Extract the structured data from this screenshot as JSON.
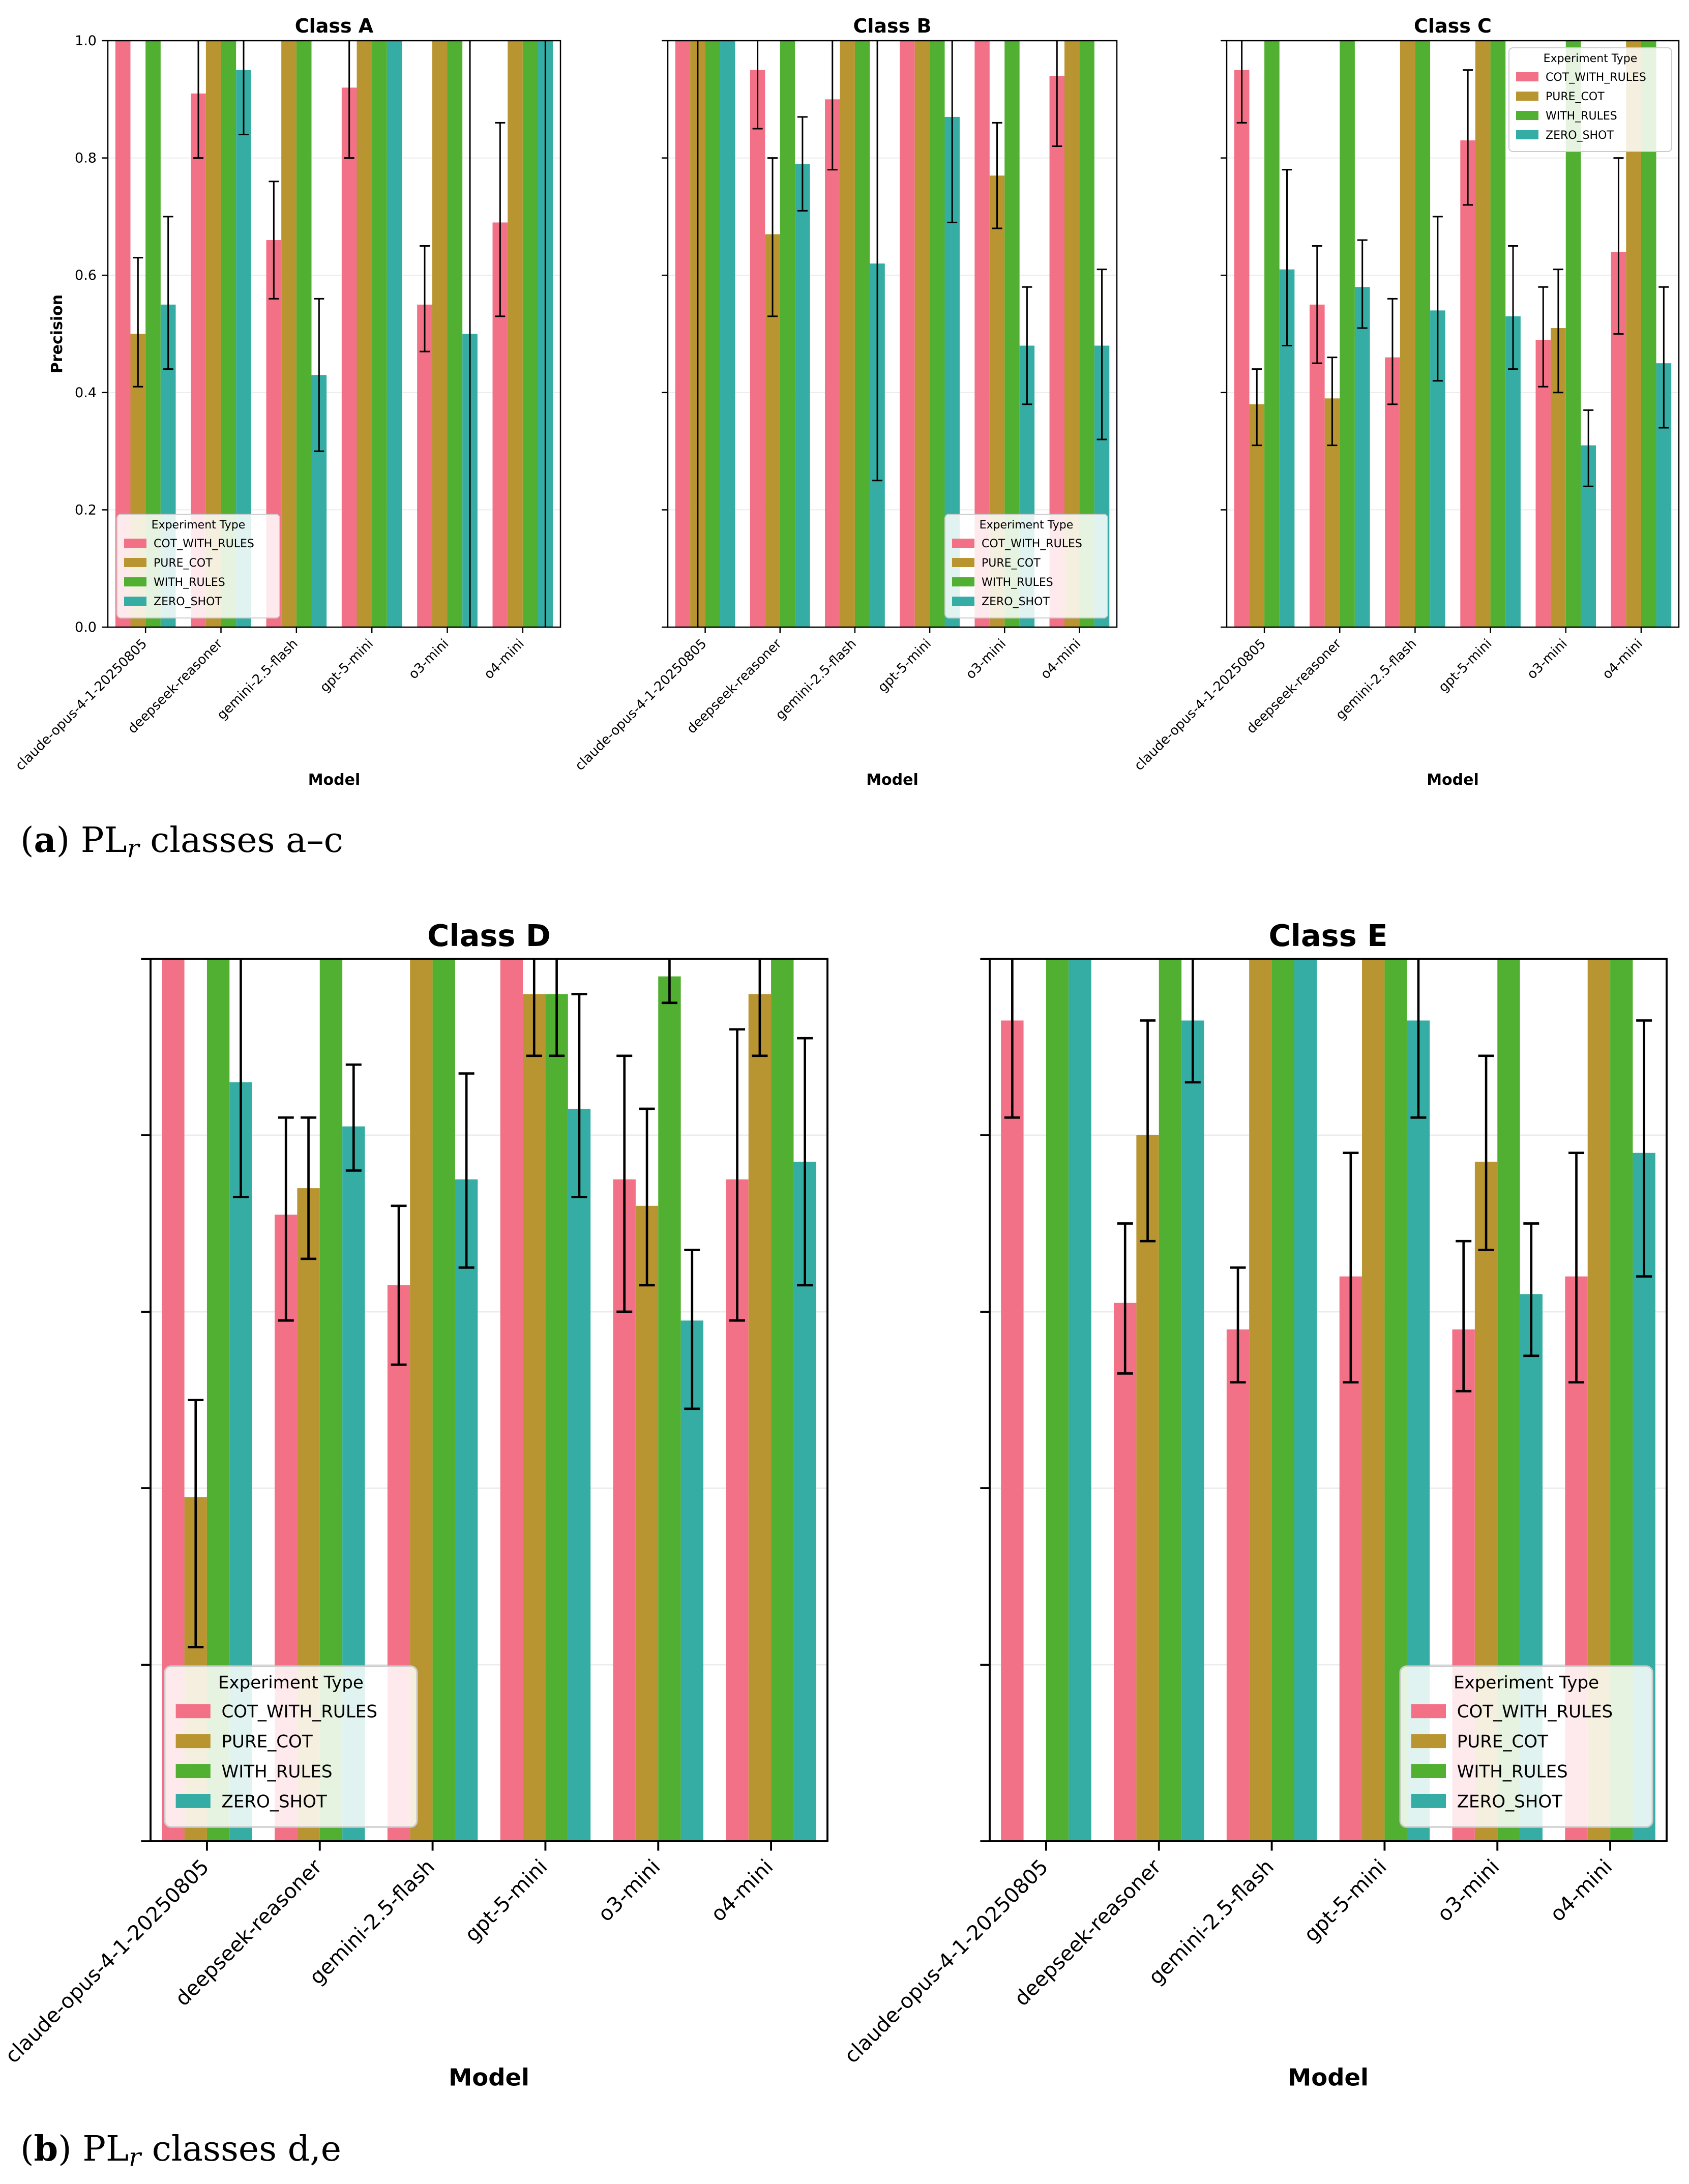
{
  "legend_title": "Experiment Type",
  "experiments": [
    "COT_WITH_RULES",
    "PURE_COT",
    "WITH_RULES",
    "ZERO_SHOT"
  ],
  "colors": {
    "COT_WITH_RULES": "#f37187",
    "PURE_COT": "#b99531",
    "WITH_RULES": "#51b031",
    "ZERO_SHOT": "#36ada4"
  },
  "captions": [
    {
      "label": "a",
      "prefix": "PL",
      "sub": "r",
      "text": "classes a–c"
    },
    {
      "label": "b",
      "prefix": "PL",
      "sub": "r",
      "text": "classes d,e"
    }
  ],
  "chart_data": [
    {
      "type": "bar",
      "title": "Class A",
      "xlabel": "Model",
      "ylabel": "Precision",
      "ylim": [
        0,
        1.0
      ],
      "yticks": [
        "0.0",
        "0.2",
        "0.4",
        "0.6",
        "0.8",
        "1.0"
      ],
      "grid": true,
      "legend_position": "lower-left",
      "categories": [
        "claude-opus-4-1-20250805",
        "deepseek-reasoner",
        "gemini-2.5-flash",
        "gpt-5-mini",
        "o3-mini",
        "o4-mini"
      ],
      "series": [
        {
          "name": "COT_WITH_RULES",
          "values": [
            1.0,
            0.91,
            0.66,
            0.92,
            0.55,
            0.69
          ],
          "err_low": [
            null,
            0.8,
            0.56,
            0.8,
            0.47,
            0.53
          ],
          "err_high": [
            null,
            1.0,
            0.76,
            1.0,
            0.65,
            0.86
          ]
        },
        {
          "name": "PURE_COT",
          "values": [
            0.5,
            1.0,
            1.0,
            1.0,
            1.0,
            1.0
          ],
          "err_low": [
            0.41,
            null,
            null,
            null,
            null,
            null
          ],
          "err_high": [
            0.63,
            null,
            null,
            null,
            null,
            null
          ]
        },
        {
          "name": "WITH_RULES",
          "values": [
            1.0,
            1.0,
            1.0,
            1.0,
            1.0,
            1.0
          ],
          "err_low": [
            null,
            null,
            null,
            null,
            null,
            null
          ],
          "err_high": [
            null,
            null,
            null,
            null,
            null,
            null
          ]
        },
        {
          "name": "ZERO_SHOT",
          "values": [
            0.55,
            0.95,
            0.43,
            1.0,
            0.5,
            1.0
          ],
          "err_low": [
            0.44,
            0.84,
            0.3,
            null,
            0.0,
            0.0
          ],
          "err_high": [
            0.7,
            1.0,
            0.56,
            null,
            1.0,
            1.0
          ]
        }
      ]
    },
    {
      "type": "bar",
      "title": "Class B",
      "xlabel": "Model",
      "ylabel": "",
      "ylim": [
        0,
        1.0
      ],
      "yticks": [],
      "grid": true,
      "legend_position": "lower-right",
      "categories": [
        "claude-opus-4-1-20250805",
        "deepseek-reasoner",
        "gemini-2.5-flash",
        "gpt-5-mini",
        "o3-mini",
        "o4-mini"
      ],
      "series": [
        {
          "name": "COT_WITH_RULES",
          "values": [
            1.0,
            0.95,
            0.9,
            1.0,
            1.0,
            0.94
          ],
          "err_low": [
            null,
            0.85,
            0.78,
            null,
            null,
            0.82
          ],
          "err_high": [
            null,
            1.0,
            1.0,
            null,
            null,
            1.0
          ]
        },
        {
          "name": "PURE_COT",
          "values": [
            1.0,
            0.67,
            1.0,
            1.0,
            0.77,
            1.0
          ],
          "err_low": [
            0.0,
            0.53,
            null,
            null,
            0.68,
            null
          ],
          "err_high": [
            1.0,
            0.8,
            null,
            null,
            0.86,
            null
          ]
        },
        {
          "name": "WITH_RULES",
          "values": [
            1.0,
            1.0,
            1.0,
            1.0,
            1.0,
            1.0
          ],
          "err_low": [
            null,
            null,
            null,
            null,
            null,
            null
          ],
          "err_high": [
            null,
            null,
            null,
            null,
            null,
            null
          ]
        },
        {
          "name": "ZERO_SHOT",
          "values": [
            1.0,
            0.79,
            0.62,
            0.87,
            0.48,
            0.48
          ],
          "err_low": [
            null,
            0.71,
            0.25,
            0.69,
            0.38,
            0.32
          ],
          "err_high": [
            null,
            0.87,
            1.0,
            1.0,
            0.58,
            0.61
          ]
        }
      ]
    },
    {
      "type": "bar",
      "title": "Class C",
      "xlabel": "Model",
      "ylabel": "",
      "ylim": [
        0,
        1.0
      ],
      "yticks": [],
      "grid": true,
      "legend_position": "top-right",
      "categories": [
        "claude-opus-4-1-20250805",
        "deepseek-reasoner",
        "gemini-2.5-flash",
        "gpt-5-mini",
        "o3-mini",
        "o4-mini"
      ],
      "series": [
        {
          "name": "COT_WITH_RULES",
          "values": [
            0.95,
            0.55,
            0.46,
            0.83,
            0.49,
            0.64
          ],
          "err_low": [
            0.86,
            0.45,
            0.38,
            0.72,
            0.41,
            0.5
          ],
          "err_high": [
            1.0,
            0.65,
            0.56,
            0.95,
            0.58,
            0.8
          ]
        },
        {
          "name": "PURE_COT",
          "values": [
            0.38,
            0.39,
            1.0,
            1.0,
            0.51,
            1.0
          ],
          "err_low": [
            0.31,
            0.31,
            null,
            null,
            0.4,
            null
          ],
          "err_high": [
            0.44,
            0.46,
            null,
            null,
            0.61,
            null
          ]
        },
        {
          "name": "WITH_RULES",
          "values": [
            1.0,
            1.0,
            1.0,
            1.0,
            1.0,
            1.0
          ],
          "err_low": [
            null,
            null,
            null,
            null,
            null,
            null
          ],
          "err_high": [
            null,
            null,
            null,
            null,
            null,
            null
          ]
        },
        {
          "name": "ZERO_SHOT",
          "values": [
            0.61,
            0.58,
            0.54,
            0.53,
            0.31,
            0.45
          ],
          "err_low": [
            0.48,
            0.51,
            0.42,
            0.44,
            0.24,
            0.34
          ],
          "err_high": [
            0.78,
            0.66,
            0.7,
            0.65,
            0.37,
            0.58
          ]
        }
      ]
    },
    {
      "type": "bar",
      "title": "Class D",
      "xlabel": "Model",
      "ylabel": "",
      "ylim": [
        0,
        1.0
      ],
      "yticks": [],
      "grid": true,
      "legend_position": "lower-left",
      "categories": [
        "claude-opus-4-1-20250805",
        "deepseek-reasoner",
        "gemini-2.5-flash",
        "gpt-5-mini",
        "o3-mini",
        "o4-mini"
      ],
      "series": [
        {
          "name": "COT_WITH_RULES",
          "values": [
            1.0,
            0.71,
            0.63,
            1.0,
            0.75,
            0.75
          ],
          "err_low": [
            null,
            0.59,
            0.54,
            null,
            0.6,
            0.59
          ],
          "err_high": [
            null,
            0.82,
            0.72,
            null,
            0.89,
            0.92
          ]
        },
        {
          "name": "PURE_COT",
          "values": [
            0.39,
            0.74,
            1.0,
            0.96,
            0.72,
            0.96
          ],
          "err_low": [
            0.22,
            0.66,
            null,
            0.89,
            0.63,
            0.89
          ],
          "err_high": [
            0.5,
            0.82,
            null,
            1.0,
            0.83,
            1.0
          ]
        },
        {
          "name": "WITH_RULES",
          "values": [
            1.0,
            1.0,
            1.0,
            0.96,
            0.98,
            1.0
          ],
          "err_low": [
            null,
            null,
            null,
            0.89,
            0.95,
            null
          ],
          "err_high": [
            null,
            null,
            null,
            1.0,
            1.0,
            null
          ]
        },
        {
          "name": "ZERO_SHOT",
          "values": [
            0.86,
            0.81,
            0.75,
            0.83,
            0.59,
            0.77
          ],
          "err_low": [
            0.73,
            0.76,
            0.65,
            0.73,
            0.49,
            0.63
          ],
          "err_high": [
            1.0,
            0.88,
            0.87,
            0.96,
            0.67,
            0.91
          ]
        }
      ]
    },
    {
      "type": "bar",
      "title": "Class E",
      "xlabel": "Model",
      "ylabel": "",
      "ylim": [
        0,
        1.0
      ],
      "yticks": [],
      "grid": true,
      "legend_position": "lower-right",
      "categories": [
        "claude-opus-4-1-20250805",
        "deepseek-reasoner",
        "gemini-2.5-flash",
        "gpt-5-mini",
        "o3-mini",
        "o4-mini"
      ],
      "series": [
        {
          "name": "COT_WITH_RULES",
          "values": [
            0.93,
            0.61,
            0.58,
            0.64,
            0.58,
            0.64
          ],
          "err_low": [
            0.82,
            0.53,
            0.52,
            0.52,
            0.51,
            0.52
          ],
          "err_high": [
            1.0,
            0.7,
            0.65,
            0.78,
            0.68,
            0.78
          ]
        },
        {
          "name": "PURE_COT",
          "values": [
            0.0,
            0.8,
            1.0,
            1.0,
            0.77,
            1.0
          ],
          "err_low": [
            null,
            0.68,
            null,
            null,
            0.67,
            null
          ],
          "err_high": [
            null,
            0.93,
            null,
            null,
            0.89,
            null
          ]
        },
        {
          "name": "WITH_RULES",
          "values": [
            1.0,
            1.0,
            1.0,
            1.0,
            1.0,
            1.0
          ],
          "err_low": [
            null,
            null,
            null,
            null,
            null,
            null
          ],
          "err_high": [
            null,
            null,
            null,
            null,
            null,
            null
          ]
        },
        {
          "name": "ZERO_SHOT",
          "values": [
            1.0,
            0.93,
            1.0,
            0.93,
            0.62,
            0.78
          ],
          "err_low": [
            null,
            0.86,
            null,
            0.82,
            0.55,
            0.64
          ],
          "err_high": [
            null,
            1.0,
            null,
            1.0,
            0.7,
            0.93
          ]
        }
      ]
    }
  ]
}
